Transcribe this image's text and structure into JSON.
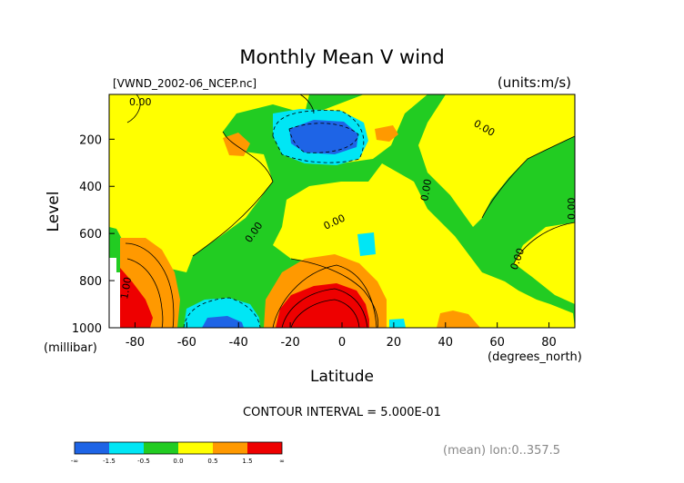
{
  "chart_data": {
    "type": "heatmap",
    "title": "Monthly Mean V wind",
    "dataset_label": "[VWND_2002-06_NCEP.nc]",
    "units_label": "(units:m/s)",
    "xlabel": "Latitude",
    "x_units": "(degrees_north)",
    "ylabel": "Level",
    "y_units": "(millibar)",
    "xlim": [
      -90,
      90
    ],
    "ylim": [
      1000,
      10
    ],
    "x_ticks": [
      -80,
      -60,
      -40,
      -20,
      0,
      20,
      40,
      60,
      80
    ],
    "y_ticks": [
      200,
      400,
      600,
      800,
      1000
    ],
    "contour_interval": "CONTOUR INTERVAL = 5.000E-01",
    "footer_note": "(mean) lon:0..357.5",
    "contour_labels": [
      "0.00",
      "0.00",
      "0.00",
      "0.00",
      "0.00",
      "0.00",
      "0.00",
      "1.00"
    ],
    "colorbar": {
      "labels": [
        "-∞",
        "-1.5",
        "-0.5",
        "0.0",
        "0.5",
        "1.5",
        "∞"
      ],
      "colors": [
        "#1e64e6",
        "#00e6f5",
        "#22cc22",
        "#ffff00",
        "#ff9900",
        "#ee0000"
      ]
    }
  }
}
